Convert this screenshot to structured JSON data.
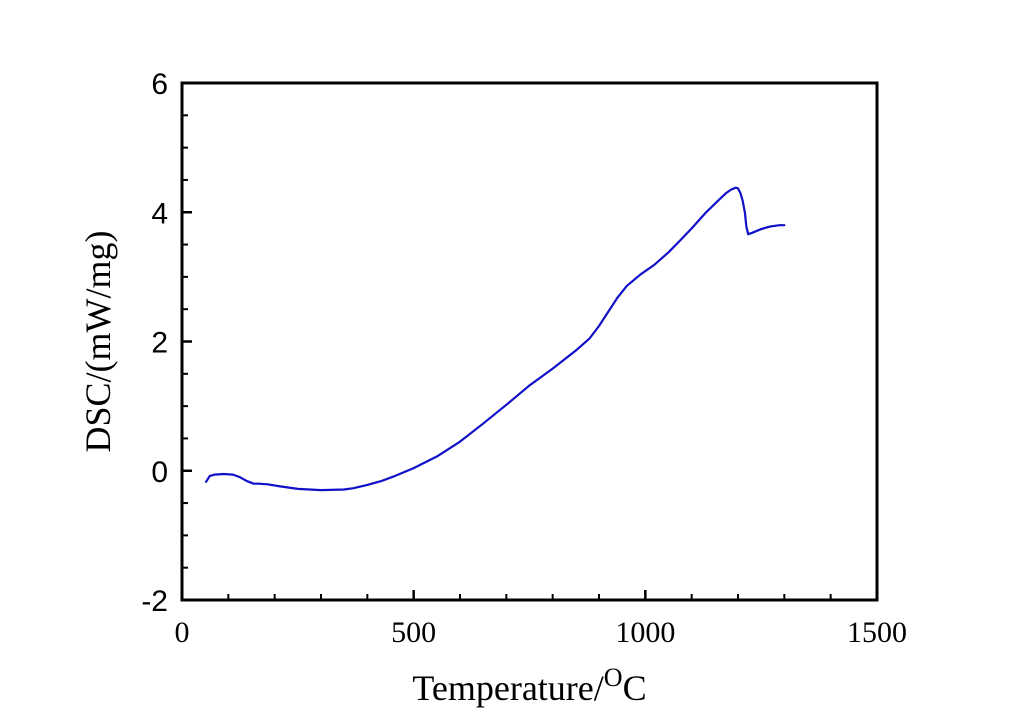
{
  "chart_data": {
    "type": "line",
    "title": "",
    "xlabel_main": "Temperature/",
    "xlabel_super": "O",
    "xlabel_tail": "C",
    "ylabel": "DSC/(mW/mg)",
    "xlim": [
      0,
      1500
    ],
    "ylim": [
      -2,
      6
    ],
    "x_ticks": [
      0,
      500,
      1000,
      1500
    ],
    "x_tick_labels": [
      "0",
      "500",
      "1000",
      "1500"
    ],
    "y_ticks": [
      -2,
      0,
      2,
      4,
      6
    ],
    "y_tick_labels": [
      "-2",
      "0",
      "2",
      "4",
      "6"
    ],
    "x_minor_step": 100,
    "y_minor_step": 0.5,
    "grid": false,
    "legend": "none",
    "line_color": "#1010c8",
    "series": [
      {
        "x": [
          52,
          60,
          70,
          90,
          110,
          125,
          140,
          155,
          165,
          185,
          210,
          250,
          300,
          350,
          370,
          400,
          430,
          460,
          500,
          550,
          600,
          650,
          700,
          750,
          800,
          850,
          880,
          900,
          920,
          940,
          960,
          990,
          1020,
          1050,
          1080,
          1100,
          1130,
          1160,
          1175,
          1185,
          1195,
          1200,
          1205,
          1210,
          1215,
          1218,
          1222,
          1230,
          1250,
          1270,
          1290,
          1300
        ],
        "y": [
          -0.17,
          -0.08,
          -0.06,
          -0.05,
          -0.06,
          -0.1,
          -0.16,
          -0.2,
          -0.2,
          -0.21,
          -0.24,
          -0.28,
          -0.3,
          -0.29,
          -0.27,
          -0.22,
          -0.16,
          -0.08,
          0.04,
          0.22,
          0.45,
          0.73,
          1.02,
          1.32,
          1.58,
          1.86,
          2.05,
          2.24,
          2.46,
          2.68,
          2.86,
          3.04,
          3.19,
          3.38,
          3.6,
          3.75,
          3.99,
          4.2,
          4.3,
          4.35,
          4.38,
          4.37,
          4.3,
          4.18,
          3.99,
          3.78,
          3.66,
          3.68,
          3.74,
          3.78,
          3.8,
          3.8
        ]
      }
    ]
  }
}
